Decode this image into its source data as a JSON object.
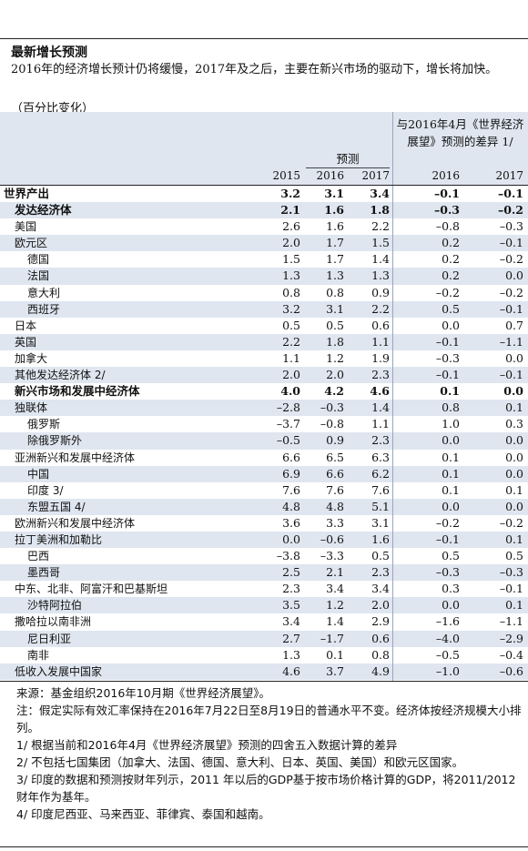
{
  "header": {
    "title": "最新增长预测",
    "subtitle": "2016年的经济增长预计仍将缓慢，2017年及之后，主要在新兴市场的驱动下，增长将加快。",
    "unit": "（百分比变化）"
  },
  "columns": {
    "diff_heading": "与2016年4月《世界经济展望》预测的差异 1/",
    "forecast_heading": "预测",
    "years": [
      "2015",
      "2016",
      "2017",
      "2016",
      "2017"
    ]
  },
  "rows": [
    {
      "label": "世界产出",
      "indent": 0,
      "bold": true,
      "alt": false,
      "values": [
        "3.2",
        "3.1",
        "3.4",
        "–0.1",
        "–0.1"
      ]
    },
    {
      "label": "发达经济体",
      "indent": 1,
      "bold": true,
      "alt": true,
      "values": [
        "2.1",
        "1.6",
        "1.8",
        "–0.3",
        "–0.2"
      ]
    },
    {
      "label": "美国",
      "indent": 1,
      "bold": false,
      "alt": false,
      "values": [
        "2.6",
        "1.6",
        "2.2",
        "–0.8",
        "–0.3"
      ]
    },
    {
      "label": "欧元区",
      "indent": 1,
      "bold": false,
      "alt": true,
      "values": [
        "2.0",
        "1.7",
        "1.5",
        "0.2",
        "–0.1"
      ]
    },
    {
      "label": "德国",
      "indent": 2,
      "bold": false,
      "alt": false,
      "values": [
        "1.5",
        "1.7",
        "1.4",
        "0.2",
        "–0.2"
      ]
    },
    {
      "label": "法国",
      "indent": 2,
      "bold": false,
      "alt": true,
      "values": [
        "1.3",
        "1.3",
        "1.3",
        "0.2",
        "0.0"
      ]
    },
    {
      "label": "意大利",
      "indent": 2,
      "bold": false,
      "alt": false,
      "values": [
        "0.8",
        "0.8",
        "0.9",
        "–0.2",
        "–0.2"
      ]
    },
    {
      "label": "西班牙",
      "indent": 2,
      "bold": false,
      "alt": true,
      "values": [
        "3.2",
        "3.1",
        "2.2",
        "0.5",
        "–0.1"
      ]
    },
    {
      "label": "日本",
      "indent": 1,
      "bold": false,
      "alt": false,
      "values": [
        "0.5",
        "0.5",
        "0.6",
        "0.0",
        "0.7"
      ]
    },
    {
      "label": "英国",
      "indent": 1,
      "bold": false,
      "alt": true,
      "values": [
        "2.2",
        "1.8",
        "1.1",
        "–0.1",
        "–1.1"
      ]
    },
    {
      "label": "加拿大",
      "indent": 1,
      "bold": false,
      "alt": false,
      "values": [
        "1.1",
        "1.2",
        "1.9",
        "–0.3",
        "0.0"
      ]
    },
    {
      "label": "其他发达经济体 2/",
      "indent": 1,
      "bold": false,
      "alt": true,
      "values": [
        "2.0",
        "2.0",
        "2.3",
        "–0.1",
        "–0.1"
      ]
    },
    {
      "label": "新兴市场和发展中经济体",
      "indent": 1,
      "bold": true,
      "alt": false,
      "values": [
        "4.0",
        "4.2",
        "4.6",
        "0.1",
        "0.0"
      ]
    },
    {
      "label": "独联体",
      "indent": 1,
      "bold": false,
      "alt": true,
      "values": [
        "–2.8",
        "–0.3",
        "1.4",
        "0.8",
        "0.1"
      ]
    },
    {
      "label": "俄罗斯",
      "indent": 2,
      "bold": false,
      "alt": false,
      "values": [
        "–3.7",
        "–0.8",
        "1.1",
        "1.0",
        "0.3"
      ]
    },
    {
      "label": "除俄罗斯外",
      "indent": 2,
      "bold": false,
      "alt": true,
      "values": [
        "–0.5",
        "0.9",
        "2.3",
        "0.0",
        "0.0"
      ]
    },
    {
      "label": "亚洲新兴和发展中经济体",
      "indent": 1,
      "bold": false,
      "alt": false,
      "values": [
        "6.6",
        "6.5",
        "6.3",
        "0.1",
        "0.0"
      ]
    },
    {
      "label": "中国",
      "indent": 2,
      "bold": false,
      "alt": true,
      "values": [
        "6.9",
        "6.6",
        "6.2",
        "0.1",
        "0.0"
      ]
    },
    {
      "label": "印度 3/",
      "indent": 2,
      "bold": false,
      "alt": false,
      "values": [
        "7.6",
        "7.6",
        "7.6",
        "0.1",
        "0.1"
      ]
    },
    {
      "label": "东盟五国 4/",
      "indent": 2,
      "bold": false,
      "alt": true,
      "values": [
        "4.8",
        "4.8",
        "5.1",
        "0.0",
        "0.0"
      ]
    },
    {
      "label": "欧洲新兴和发展中经济体",
      "indent": 1,
      "bold": false,
      "alt": false,
      "values": [
        "3.6",
        "3.3",
        "3.1",
        "–0.2",
        "–0.2"
      ]
    },
    {
      "label": "拉丁美洲和加勒比",
      "indent": 1,
      "bold": false,
      "alt": true,
      "values": [
        "0.0",
        "–0.6",
        "1.6",
        "–0.1",
        "0.1"
      ]
    },
    {
      "label": "巴西",
      "indent": 2,
      "bold": false,
      "alt": false,
      "values": [
        "–3.8",
        "–3.3",
        "0.5",
        "0.5",
        "0.5"
      ]
    },
    {
      "label": "墨西哥",
      "indent": 2,
      "bold": false,
      "alt": true,
      "values": [
        "2.5",
        "2.1",
        "2.3",
        "–0.3",
        "–0.3"
      ]
    },
    {
      "label": "中东、北非、阿富汗和巴基斯坦",
      "indent": 1,
      "bold": false,
      "alt": false,
      "values": [
        "2.3",
        "3.4",
        "3.4",
        "0.3",
        "–0.1"
      ]
    },
    {
      "label": "沙特阿拉伯",
      "indent": 2,
      "bold": false,
      "alt": true,
      "values": [
        "3.5",
        "1.2",
        "2.0",
        "0.0",
        "0.1"
      ]
    },
    {
      "label": "撒哈拉以南非洲",
      "indent": 1,
      "bold": false,
      "alt": false,
      "values": [
        "3.4",
        "1.4",
        "2.9",
        "–1.6",
        "–1.1"
      ]
    },
    {
      "label": "尼日利亚",
      "indent": 2,
      "bold": false,
      "alt": true,
      "values": [
        "2.7",
        "–1.7",
        "0.6",
        "–4.0",
        "–2.9"
      ]
    },
    {
      "label": "南非",
      "indent": 2,
      "bold": false,
      "alt": false,
      "values": [
        "1.3",
        "0.1",
        "0.8",
        "–0.5",
        "–0.4"
      ]
    },
    {
      "label": "低收入发展中国家",
      "indent": 1,
      "bold": false,
      "alt": true,
      "values": [
        "4.6",
        "3.7",
        "4.9",
        "–1.0",
        "–0.6"
      ]
    }
  ],
  "notes": [
    "来源：基金组织2016年10月期《世界经济展望》。",
    "注：假定实际有效汇率保持在2016年7月22日至8月19日的普通水平不变。经济体按经济规模大小排列。",
    "1/ 根据当前和2016年4月《世界经济展望》预测的四舍五入数据计算的差异",
    "2/ 不包括七国集团（加拿大、法国、德国、意大利、日本、英国、美国）和欧元区国家。",
    "3/ 印度的数据和预测按财年列示，2011 年以后的GDP基于按市场价格计算的GDP，将2011/2012财年作为基年。",
    "4/ 印度尼西亚、马来西亚、菲律宾、泰国和越南。"
  ],
  "colors": {
    "band": "#dfe6f0",
    "rule": "#222222",
    "text": "#111111"
  }
}
